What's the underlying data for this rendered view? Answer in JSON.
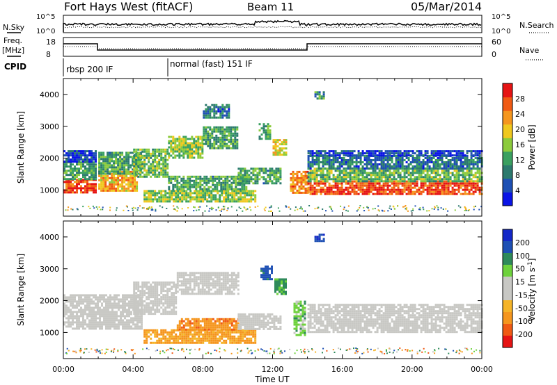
{
  "header": {
    "station": "Fort Hays West (fitACF)",
    "beam": "Beam 11",
    "date": "05/Mar/2014"
  },
  "strip_labels": {
    "nsky": "N.Sky",
    "nsky_top": "10^5",
    "nsky_bottom": "10^0",
    "nsearch": "N.Search",
    "nsearch_top": "10^5",
    "nsearch_bottom": "10^0",
    "freq": "Freq.",
    "freq_unit": "[MHz]",
    "freq_top": "18",
    "freq_bottom": "8",
    "nave": "Nave",
    "nave_top": "60",
    "nave_bottom": "0",
    "cpid": "CPID"
  },
  "cpid_segments": [
    {
      "label": "rbsp 200 IF",
      "start_h": 0,
      "end_h": 6
    },
    {
      "label": "normal (fast) 151 IF",
      "start_h": 6,
      "end_h": 24
    }
  ],
  "colors": {
    "power": [
      "#0a14e6",
      "#1e50b4",
      "#2c7a6e",
      "#3aa060",
      "#8ccb3c",
      "#f0c81e",
      "#f5961e",
      "#f05a14",
      "#e61414"
    ],
    "velocity": [
      "#e61414",
      "#f05a14",
      "#f5961e",
      "#f5b428",
      "#c8c8c4",
      "#c8c8c4",
      "#6ed23c",
      "#2e8a5a",
      "#1e50b4",
      "#1428c8"
    ],
    "frame": "#000000"
  },
  "chart_data": [
    {
      "type": "heatmap",
      "name": "power",
      "title": "",
      "ylabel": "Slant Range [km]",
      "xlabel": "",
      "xlim": [
        0,
        24
      ],
      "ylim": [
        180,
        4500
      ],
      "yticks": [
        "1000",
        "2000",
        "3000",
        "4000"
      ],
      "colorbar_label": "Power [dB]",
      "colorbar_ticks": [
        "4",
        "8",
        "12",
        "16",
        "20",
        "24",
        "28"
      ],
      "regions": [
        {
          "t0": 0.0,
          "t1": 1.9,
          "r0": 900,
          "r1": 1350,
          "v": 28
        },
        {
          "t0": 0.0,
          "t1": 1.9,
          "r0": 1350,
          "r1": 1900,
          "v": 12
        },
        {
          "t0": 0.0,
          "t1": 1.9,
          "r0": 1900,
          "r1": 2250,
          "v": 4
        },
        {
          "t0": 2.0,
          "t1": 4.2,
          "r0": 1000,
          "r1": 1600,
          "v": 22
        },
        {
          "t0": 2.0,
          "t1": 4.5,
          "r0": 1500,
          "r1": 2200,
          "v": 12
        },
        {
          "t0": 4.0,
          "t1": 6.0,
          "r0": 1400,
          "r1": 2300,
          "v": 14
        },
        {
          "t0": 6.0,
          "t1": 8.0,
          "r0": 2000,
          "r1": 2700,
          "v": 16
        },
        {
          "t0": 8.0,
          "t1": 10.0,
          "r0": 2300,
          "r1": 3000,
          "v": 12
        },
        {
          "t0": 4.6,
          "t1": 11.0,
          "r0": 650,
          "r1": 1000,
          "v": 16
        },
        {
          "t0": 6.0,
          "t1": 10.5,
          "r0": 1000,
          "r1": 1450,
          "v": 12
        },
        {
          "t0": 10.0,
          "t1": 12.5,
          "r0": 1200,
          "r1": 1700,
          "v": 12
        },
        {
          "t0": 11.2,
          "t1": 11.9,
          "r0": 2600,
          "r1": 3100,
          "v": 12
        },
        {
          "t0": 12.0,
          "t1": 12.8,
          "r0": 2100,
          "r1": 2600,
          "v": 20
        },
        {
          "t0": 8.0,
          "t1": 9.5,
          "r0": 3300,
          "r1": 3700,
          "v": 8
        },
        {
          "t0": 13.0,
          "t1": 14.0,
          "r0": 900,
          "r1": 1600,
          "v": 24
        },
        {
          "t0": 14.0,
          "t1": 24.0,
          "r0": 850,
          "r1": 1300,
          "v": 28
        },
        {
          "t0": 14.0,
          "t1": 24.0,
          "r0": 1300,
          "r1": 1700,
          "v": 14
        },
        {
          "t0": 14.0,
          "t1": 24.0,
          "r0": 1700,
          "r1": 2100,
          "v": 8
        },
        {
          "t0": 14.0,
          "t1": 24.0,
          "r0": 2100,
          "r1": 2250,
          "v": 4
        },
        {
          "t0": 14.4,
          "t1": 14.9,
          "r0": 3900,
          "r1": 4100,
          "v": 10
        }
      ]
    },
    {
      "type": "heatmap",
      "name": "velocity",
      "title": "",
      "ylabel": "Slant Range [km]",
      "xlabel": "Time UT",
      "xlim": [
        0,
        24
      ],
      "ylim": [
        180,
        4500
      ],
      "xticks": [
        "00:00",
        "04:00",
        "08:00",
        "12:00",
        "16:00",
        "20:00",
        "00:00"
      ],
      "yticks": [
        "1000",
        "2000",
        "3000",
        "4000"
      ],
      "colorbar_label": "Velocity [m s^-1]",
      "colorbar_ticks": [
        "200",
        "100",
        "50",
        "15",
        "-15",
        "-50",
        "-100",
        "-200"
      ],
      "regions": [
        {
          "t0": 0.0,
          "t1": 4.5,
          "r0": 1100,
          "r1": 2200,
          "v": 0
        },
        {
          "t0": 4.0,
          "t1": 6.5,
          "r0": 1600,
          "r1": 2600,
          "v": 0
        },
        {
          "t0": 6.5,
          "t1": 10.0,
          "r0": 2200,
          "r1": 2900,
          "v": 0
        },
        {
          "t0": 4.6,
          "t1": 11.0,
          "r0": 650,
          "r1": 1100,
          "v": -60
        },
        {
          "t0": 6.5,
          "t1": 10.0,
          "r0": 1100,
          "r1": 1450,
          "v": -80
        },
        {
          "t0": 10.0,
          "t1": 12.5,
          "r0": 1100,
          "r1": 1600,
          "v": 0
        },
        {
          "t0": 11.3,
          "t1": 12.0,
          "r0": 2700,
          "r1": 3100,
          "v": 120
        },
        {
          "t0": 12.1,
          "t1": 12.8,
          "r0": 2200,
          "r1": 2700,
          "v": 60
        },
        {
          "t0": 13.2,
          "t1": 13.8,
          "r0": 900,
          "r1": 2000,
          "v": 30
        },
        {
          "t0": 14.0,
          "t1": 24.0,
          "r0": 1000,
          "r1": 1900,
          "v": 0
        },
        {
          "t0": 14.4,
          "t1": 14.9,
          "r0": 3900,
          "r1": 4100,
          "v": 200
        }
      ]
    }
  ]
}
